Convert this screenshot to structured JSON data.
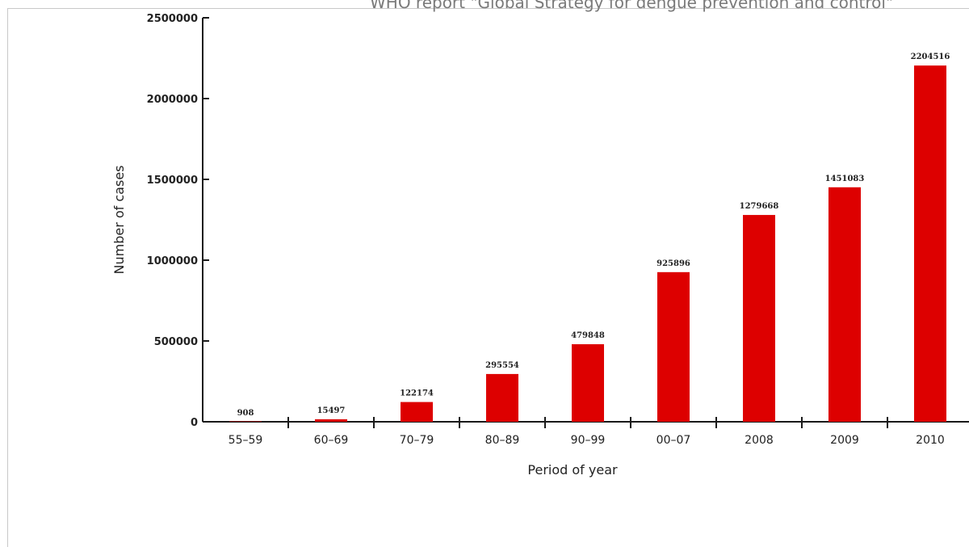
{
  "caption": "WHO report \"Global Strategy for dengue prevention and control\"",
  "colors": {
    "bar": "#dd0000",
    "axis": "#1a1a1a",
    "frame": "#c8c8c8"
  },
  "chart_data": {
    "type": "bar",
    "title": "",
    "xlabel": "Period of year",
    "ylabel": "Number of cases",
    "categories": [
      "55–59",
      "60–69",
      "70–79",
      "80–89",
      "90–99",
      "00–07",
      "2008",
      "2009",
      "2010"
    ],
    "values": [
      908,
      15497,
      122174,
      295554,
      479848,
      925896,
      1279668,
      1451083,
      2204516
    ],
    "data_labels": [
      "908",
      "15497",
      "122174",
      "295554",
      "479848",
      "925896",
      "1279668",
      "1451083",
      "2204516"
    ],
    "ylim": [
      0,
      2500000
    ],
    "yticks": [
      0,
      500000,
      1000000,
      1500000,
      2000000,
      2500000
    ],
    "ytick_labels": [
      "0",
      "500000",
      "1000000",
      "1500000",
      "2000000",
      "2500000"
    ],
    "grid": false,
    "legend": "none"
  }
}
